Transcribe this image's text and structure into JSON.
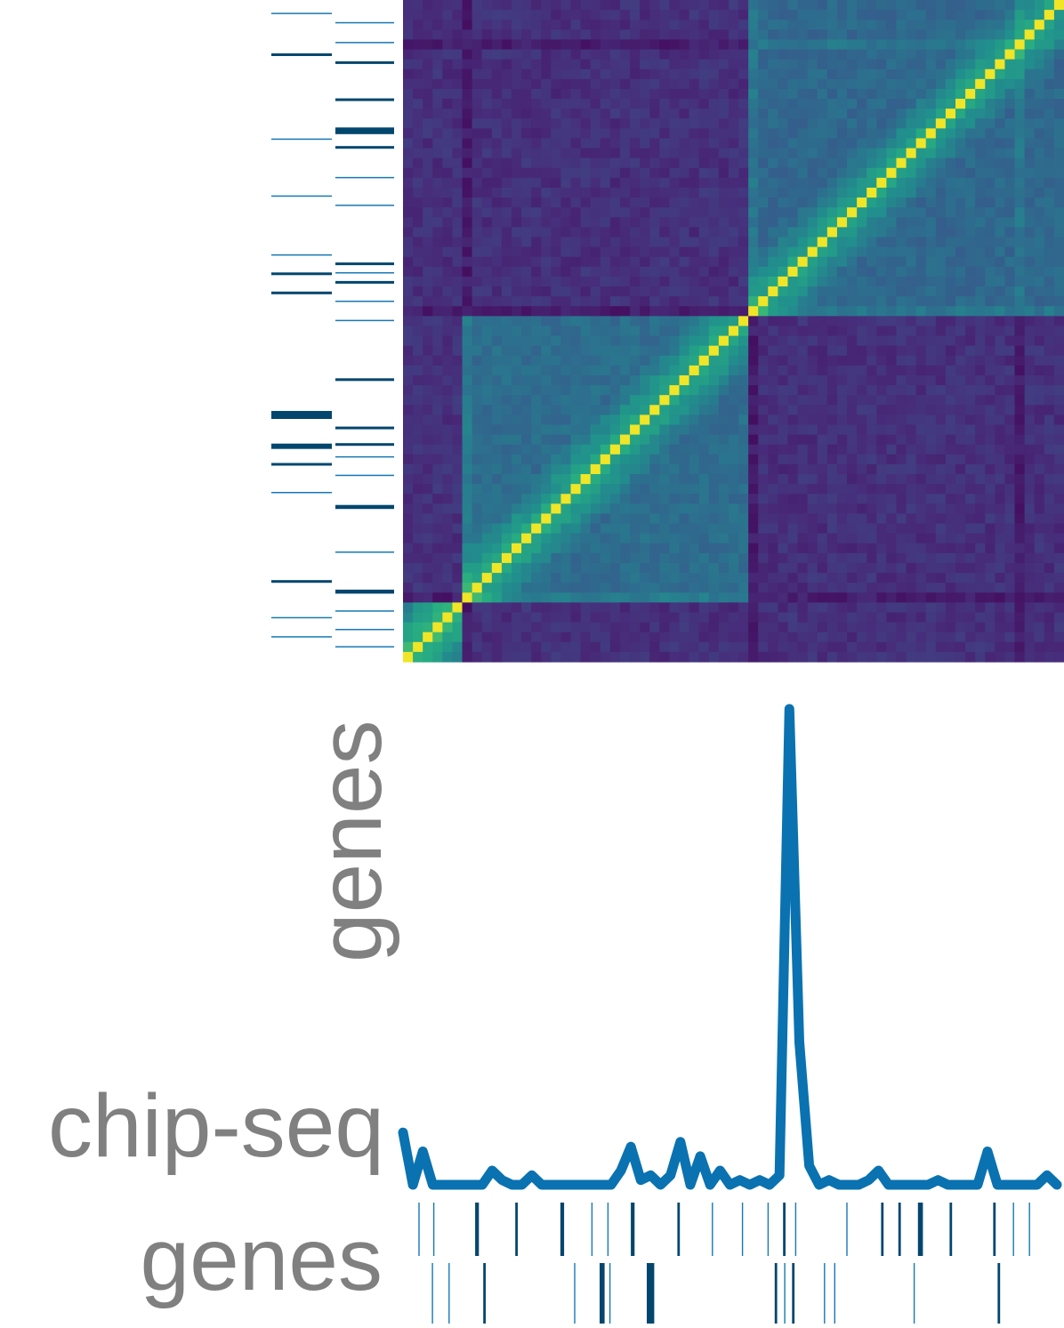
{
  "chart_data": [
    {
      "type": "heatmap",
      "description_labels": {
        "rotated_label": "genes"
      },
      "size": 67,
      "blocks": [
        {
          "from": 0,
          "to": 6,
          "level": 0.42
        },
        {
          "from": 6,
          "to": 35,
          "level": 0.36
        },
        {
          "from": 35,
          "to": 67,
          "level": 0.34
        }
      ],
      "off_block_level": 0.14,
      "diagonal_level": 0.98,
      "highlight_rows": [
        6,
        35,
        62
      ],
      "colormap": "viridis",
      "gene_tracks": {
        "left": {
          "color": "#0a5a8c",
          "rows": [
            {
              "pos": 0.02,
              "w": 1
            },
            {
              "pos": 0.082,
              "w": 2
            },
            {
              "pos": 0.21,
              "w": 1
            },
            {
              "pos": 0.296,
              "w": 1
            },
            {
              "pos": 0.385,
              "w": 1
            },
            {
              "pos": 0.413,
              "w": 2
            },
            {
              "pos": 0.442,
              "w": 2
            },
            {
              "pos": 0.625,
              "w": 6
            },
            {
              "pos": 0.673,
              "w": 4
            },
            {
              "pos": 0.701,
              "w": 2
            },
            {
              "pos": 0.744,
              "w": 1
            },
            {
              "pos": 0.878,
              "w": 2
            },
            {
              "pos": 0.933,
              "w": 1
            },
            {
              "pos": 0.962,
              "w": 1
            }
          ]
        },
        "right": {
          "color": "#0a5a8c",
          "rows": [
            {
              "pos": 0.034,
              "w": 1
            },
            {
              "pos": 0.064,
              "w": 1
            },
            {
              "pos": 0.094,
              "w": 2
            },
            {
              "pos": 0.15,
              "w": 2
            },
            {
              "pos": 0.196,
              "w": 5
            },
            {
              "pos": 0.222,
              "w": 2
            },
            {
              "pos": 0.268,
              "w": 1
            },
            {
              "pos": 0.31,
              "w": 1
            },
            {
              "pos": 0.398,
              "w": 2
            },
            {
              "pos": 0.412,
              "w": 1
            },
            {
              "pos": 0.426,
              "w": 2
            },
            {
              "pos": 0.455,
              "w": 1
            },
            {
              "pos": 0.484,
              "w": 1
            },
            {
              "pos": 0.573,
              "w": 2
            },
            {
              "pos": 0.646,
              "w": 2
            },
            {
              "pos": 0.671,
              "w": 2
            },
            {
              "pos": 0.69,
              "w": 1
            },
            {
              "pos": 0.718,
              "w": 1
            },
            {
              "pos": 0.765,
              "w": 3
            },
            {
              "pos": 0.834,
              "w": 1
            },
            {
              "pos": 0.893,
              "w": 3
            },
            {
              "pos": 0.923,
              "w": 1
            },
            {
              "pos": 0.951,
              "w": 1
            },
            {
              "pos": 0.977,
              "w": 1
            }
          ]
        }
      }
    },
    {
      "type": "line",
      "ylabel": "chip-seq",
      "color": "#0a72b0",
      "x": [
        0,
        1,
        2,
        3,
        4,
        5,
        6,
        7,
        8,
        9,
        10,
        11,
        12,
        13,
        14,
        15,
        16,
        17,
        18,
        19,
        20,
        21,
        22,
        23,
        24,
        25,
        26,
        27,
        28,
        29,
        30,
        31,
        32,
        33,
        34,
        35,
        36,
        37,
        38,
        39,
        40,
        41,
        42,
        43,
        44,
        45,
        46,
        47,
        48,
        49,
        50,
        51,
        52,
        53,
        54,
        55,
        56,
        57,
        58,
        59,
        60,
        61,
        62,
        63,
        64,
        65,
        66
      ],
      "y": [
        0.11,
        0.0,
        0.07,
        0.0,
        0.0,
        0.0,
        0.0,
        0.0,
        0.0,
        0.03,
        0.01,
        0.0,
        0.0,
        0.02,
        0.0,
        0.0,
        0.0,
        0.0,
        0.0,
        0.0,
        0.0,
        0.0,
        0.03,
        0.08,
        0.01,
        0.02,
        0.0,
        0.02,
        0.09,
        0.0,
        0.06,
        0.0,
        0.03,
        0.0,
        0.01,
        0.0,
        0.01,
        0.0,
        0.02,
        1.0,
        0.3,
        0.04,
        0.0,
        0.01,
        0.0,
        0.0,
        0.0,
        0.01,
        0.03,
        0.0,
        0.0,
        0.0,
        0.0,
        0.0,
        0.01,
        0.0,
        0.0,
        0.0,
        0.0,
        0.07,
        0.0,
        0.0,
        0.0,
        0.0,
        0.0,
        0.02,
        0.0
      ],
      "ylim": [
        0,
        1.0
      ]
    },
    {
      "type": "bar",
      "description_labels": {
        "track_label": "genes"
      },
      "tracks": [
        {
          "name": "top",
          "marks": [
            {
              "pos": 0.015,
              "w": 1
            },
            {
              "pos": 0.038,
              "w": 1
            },
            {
              "pos": 0.105,
              "w": 3
            },
            {
              "pos": 0.167,
              "w": 2
            },
            {
              "pos": 0.238,
              "w": 3
            },
            {
              "pos": 0.285,
              "w": 1
            },
            {
              "pos": 0.31,
              "w": 1
            },
            {
              "pos": 0.348,
              "w": 3
            },
            {
              "pos": 0.42,
              "w": 2
            },
            {
              "pos": 0.473,
              "w": 1
            },
            {
              "pos": 0.52,
              "w": 1
            },
            {
              "pos": 0.56,
              "w": 1
            },
            {
              "pos": 0.585,
              "w": 2
            },
            {
              "pos": 0.603,
              "w": 1
            },
            {
              "pos": 0.683,
              "w": 1
            },
            {
              "pos": 0.738,
              "w": 2
            },
            {
              "pos": 0.765,
              "w": 2
            },
            {
              "pos": 0.797,
              "w": 4
            },
            {
              "pos": 0.845,
              "w": 2
            },
            {
              "pos": 0.913,
              "w": 2
            },
            {
              "pos": 0.943,
              "w": 1
            },
            {
              "pos": 0.968,
              "w": 1
            }
          ]
        },
        {
          "name": "bottom",
          "marks": [
            {
              "pos": 0.036,
              "w": 1
            },
            {
              "pos": 0.062,
              "w": 1
            },
            {
              "pos": 0.117,
              "w": 2
            },
            {
              "pos": 0.258,
              "w": 1
            },
            {
              "pos": 0.3,
              "w": 4
            },
            {
              "pos": 0.313,
              "w": 1
            },
            {
              "pos": 0.375,
              "w": 6
            },
            {
              "pos": 0.572,
              "w": 2
            },
            {
              "pos": 0.586,
              "w": 1
            },
            {
              "pos": 0.599,
              "w": 2
            },
            {
              "pos": 0.648,
              "w": 1
            },
            {
              "pos": 0.664,
              "w": 1
            },
            {
              "pos": 0.788,
              "w": 1
            },
            {
              "pos": 0.92,
              "w": 2
            }
          ]
        }
      ],
      "color": "#0a5a8c"
    }
  ]
}
